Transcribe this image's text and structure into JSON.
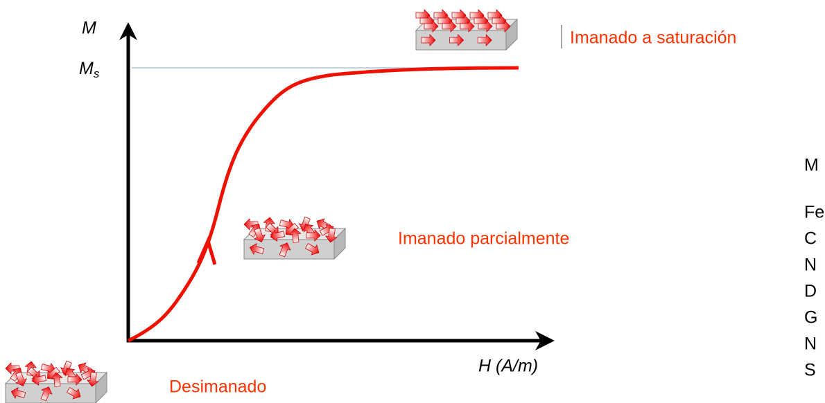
{
  "axes": {
    "y_label": "M",
    "saturation_label": "M",
    "saturation_subscript": "s",
    "x_label": "H (A/m)"
  },
  "annotations": {
    "saturated": "Imanado a saturación",
    "partial": "Imanado parcialmente",
    "demagnetized": "Desimanado"
  },
  "side_text": [
    "M",
    "Fe",
    "C",
    "N",
    "D",
    "G",
    "N",
    "S"
  ]
}
